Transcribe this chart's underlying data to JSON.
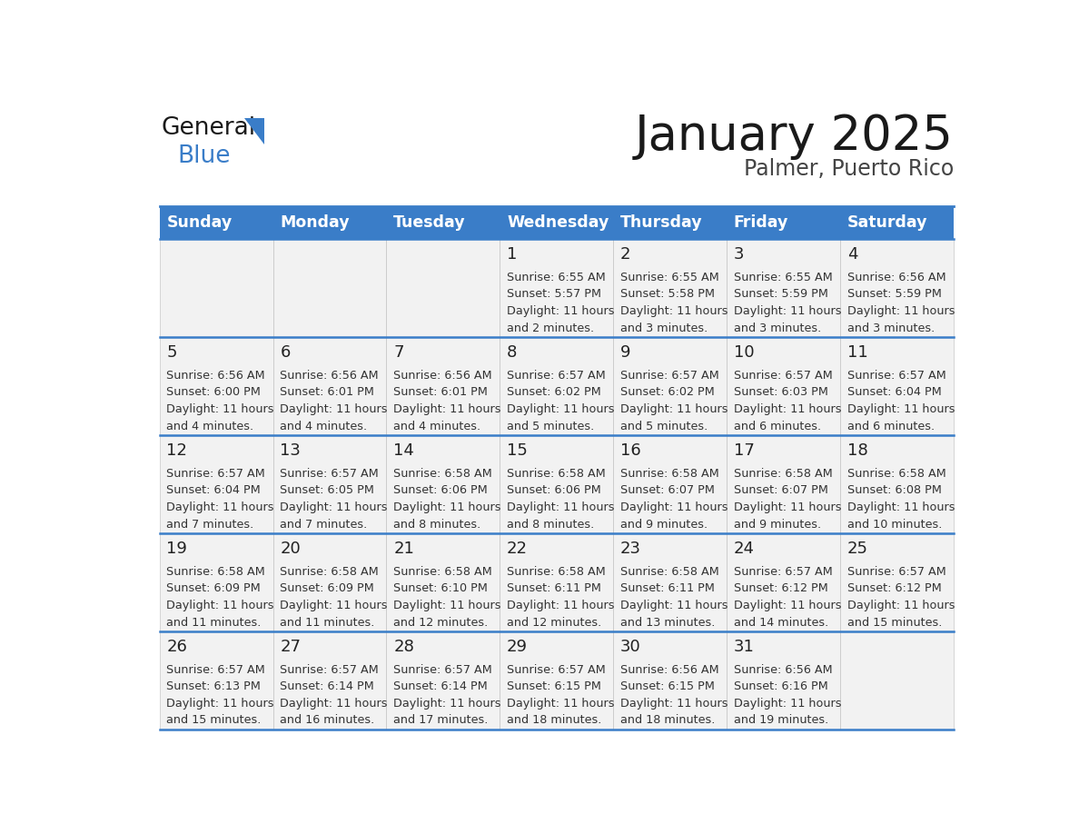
{
  "title": "January 2025",
  "subtitle": "Palmer, Puerto Rico",
  "header_bg_color": "#3a7dc8",
  "header_text_color": "#ffffff",
  "cell_bg_color": "#f2f2f2",
  "border_color": "#3a7dc8",
  "day_number_color": "#222222",
  "cell_text_color": "#333333",
  "days_of_week": [
    "Sunday",
    "Monday",
    "Tuesday",
    "Wednesday",
    "Thursday",
    "Friday",
    "Saturday"
  ],
  "calendar_data": [
    [
      {
        "day": "",
        "sunrise": "",
        "sunset": "",
        "daylight_hours": "",
        "daylight_mins": ""
      },
      {
        "day": "",
        "sunrise": "",
        "sunset": "",
        "daylight_hours": "",
        "daylight_mins": ""
      },
      {
        "day": "",
        "sunrise": "",
        "sunset": "",
        "daylight_hours": "",
        "daylight_mins": ""
      },
      {
        "day": "1",
        "sunrise": "6:55 AM",
        "sunset": "5:57 PM",
        "daylight_hours": "11 hours",
        "daylight_mins": "and 2 minutes."
      },
      {
        "day": "2",
        "sunrise": "6:55 AM",
        "sunset": "5:58 PM",
        "daylight_hours": "11 hours",
        "daylight_mins": "and 3 minutes."
      },
      {
        "day": "3",
        "sunrise": "6:55 AM",
        "sunset": "5:59 PM",
        "daylight_hours": "11 hours",
        "daylight_mins": "and 3 minutes."
      },
      {
        "day": "4",
        "sunrise": "6:56 AM",
        "sunset": "5:59 PM",
        "daylight_hours": "11 hours",
        "daylight_mins": "and 3 minutes."
      }
    ],
    [
      {
        "day": "5",
        "sunrise": "6:56 AM",
        "sunset": "6:00 PM",
        "daylight_hours": "11 hours",
        "daylight_mins": "and 4 minutes."
      },
      {
        "day": "6",
        "sunrise": "6:56 AM",
        "sunset": "6:01 PM",
        "daylight_hours": "11 hours",
        "daylight_mins": "and 4 minutes."
      },
      {
        "day": "7",
        "sunrise": "6:56 AM",
        "sunset": "6:01 PM",
        "daylight_hours": "11 hours",
        "daylight_mins": "and 4 minutes."
      },
      {
        "day": "8",
        "sunrise": "6:57 AM",
        "sunset": "6:02 PM",
        "daylight_hours": "11 hours",
        "daylight_mins": "and 5 minutes."
      },
      {
        "day": "9",
        "sunrise": "6:57 AM",
        "sunset": "6:02 PM",
        "daylight_hours": "11 hours",
        "daylight_mins": "and 5 minutes."
      },
      {
        "day": "10",
        "sunrise": "6:57 AM",
        "sunset": "6:03 PM",
        "daylight_hours": "11 hours",
        "daylight_mins": "and 6 minutes."
      },
      {
        "day": "11",
        "sunrise": "6:57 AM",
        "sunset": "6:04 PM",
        "daylight_hours": "11 hours",
        "daylight_mins": "and 6 minutes."
      }
    ],
    [
      {
        "day": "12",
        "sunrise": "6:57 AM",
        "sunset": "6:04 PM",
        "daylight_hours": "11 hours",
        "daylight_mins": "and 7 minutes."
      },
      {
        "day": "13",
        "sunrise": "6:57 AM",
        "sunset": "6:05 PM",
        "daylight_hours": "11 hours",
        "daylight_mins": "and 7 minutes."
      },
      {
        "day": "14",
        "sunrise": "6:58 AM",
        "sunset": "6:06 PM",
        "daylight_hours": "11 hours",
        "daylight_mins": "and 8 minutes."
      },
      {
        "day": "15",
        "sunrise": "6:58 AM",
        "sunset": "6:06 PM",
        "daylight_hours": "11 hours",
        "daylight_mins": "and 8 minutes."
      },
      {
        "day": "16",
        "sunrise": "6:58 AM",
        "sunset": "6:07 PM",
        "daylight_hours": "11 hours",
        "daylight_mins": "and 9 minutes."
      },
      {
        "day": "17",
        "sunrise": "6:58 AM",
        "sunset": "6:07 PM",
        "daylight_hours": "11 hours",
        "daylight_mins": "and 9 minutes."
      },
      {
        "day": "18",
        "sunrise": "6:58 AM",
        "sunset": "6:08 PM",
        "daylight_hours": "11 hours",
        "daylight_mins": "and 10 minutes."
      }
    ],
    [
      {
        "day": "19",
        "sunrise": "6:58 AM",
        "sunset": "6:09 PM",
        "daylight_hours": "11 hours",
        "daylight_mins": "and 11 minutes."
      },
      {
        "day": "20",
        "sunrise": "6:58 AM",
        "sunset": "6:09 PM",
        "daylight_hours": "11 hours",
        "daylight_mins": "and 11 minutes."
      },
      {
        "day": "21",
        "sunrise": "6:58 AM",
        "sunset": "6:10 PM",
        "daylight_hours": "11 hours",
        "daylight_mins": "and 12 minutes."
      },
      {
        "day": "22",
        "sunrise": "6:58 AM",
        "sunset": "6:11 PM",
        "daylight_hours": "11 hours",
        "daylight_mins": "and 12 minutes."
      },
      {
        "day": "23",
        "sunrise": "6:58 AM",
        "sunset": "6:11 PM",
        "daylight_hours": "11 hours",
        "daylight_mins": "and 13 minutes."
      },
      {
        "day": "24",
        "sunrise": "6:57 AM",
        "sunset": "6:12 PM",
        "daylight_hours": "11 hours",
        "daylight_mins": "and 14 minutes."
      },
      {
        "day": "25",
        "sunrise": "6:57 AM",
        "sunset": "6:12 PM",
        "daylight_hours": "11 hours",
        "daylight_mins": "and 15 minutes."
      }
    ],
    [
      {
        "day": "26",
        "sunrise": "6:57 AM",
        "sunset": "6:13 PM",
        "daylight_hours": "11 hours",
        "daylight_mins": "and 15 minutes."
      },
      {
        "day": "27",
        "sunrise": "6:57 AM",
        "sunset": "6:14 PM",
        "daylight_hours": "11 hours",
        "daylight_mins": "and 16 minutes."
      },
      {
        "day": "28",
        "sunrise": "6:57 AM",
        "sunset": "6:14 PM",
        "daylight_hours": "11 hours",
        "daylight_mins": "and 17 minutes."
      },
      {
        "day": "29",
        "sunrise": "6:57 AM",
        "sunset": "6:15 PM",
        "daylight_hours": "11 hours",
        "daylight_mins": "and 18 minutes."
      },
      {
        "day": "30",
        "sunrise": "6:56 AM",
        "sunset": "6:15 PM",
        "daylight_hours": "11 hours",
        "daylight_mins": "and 18 minutes."
      },
      {
        "day": "31",
        "sunrise": "6:56 AM",
        "sunset": "6:16 PM",
        "daylight_hours": "11 hours",
        "daylight_mins": "and 19 minutes."
      },
      {
        "day": "",
        "sunrise": "",
        "sunset": "",
        "daylight_hours": "",
        "daylight_mins": ""
      }
    ]
  ],
  "fig_width": 11.88,
  "fig_height": 9.18,
  "dpi": 100
}
